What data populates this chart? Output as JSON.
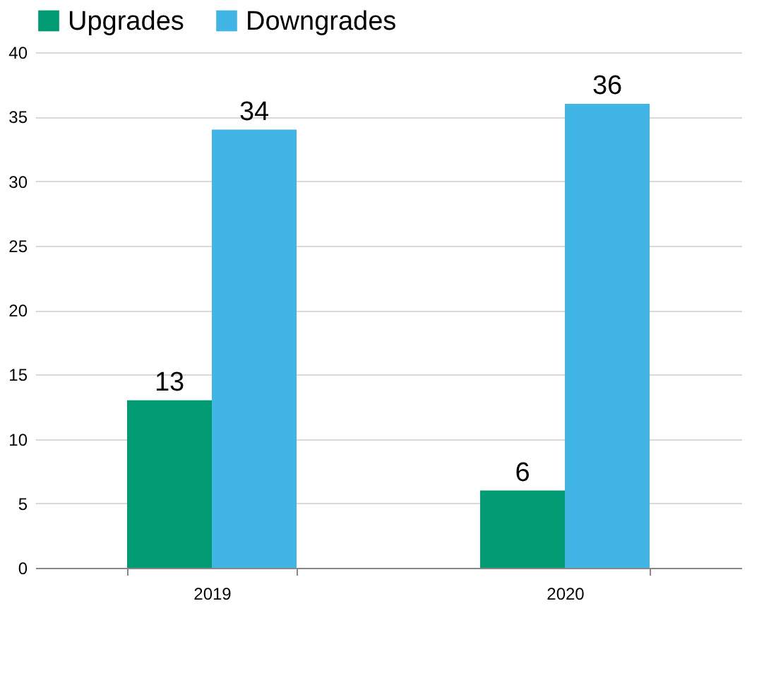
{
  "chart_data": {
    "type": "bar",
    "categories": [
      "2019",
      "2020"
    ],
    "series": [
      {
        "name": "Upgrades",
        "color": "#009a73",
        "values": [
          13,
          6
        ]
      },
      {
        "name": "Downgrades",
        "color": "#41b6e6",
        "values": [
          34,
          36
        ]
      }
    ],
    "ylim": [
      0,
      40
    ],
    "yticks": [
      0,
      5,
      10,
      15,
      20,
      25,
      30,
      35,
      40
    ],
    "grid": "y",
    "legend": "top left",
    "data_labels": true
  }
}
